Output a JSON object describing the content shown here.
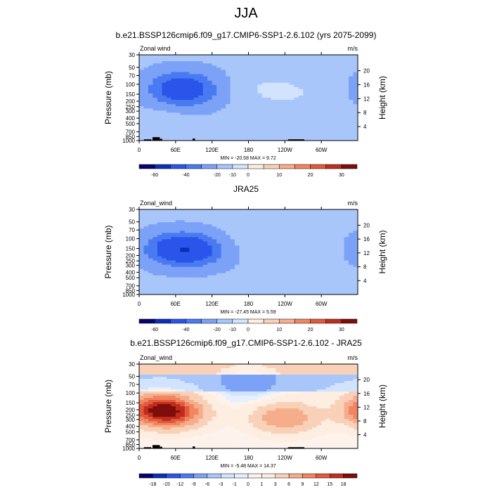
{
  "figure": {
    "title": "JJA"
  },
  "colors": {
    "full_palette": [
      "#08046a",
      "#0b2fb5",
      "#2a55ea",
      "#4a7af2",
      "#7ca2f7",
      "#a9c6fb",
      "#d1e3fd",
      "#fdeee1",
      "#f9d1b9",
      "#f6ad8c",
      "#ef8561",
      "#e25a3b",
      "#c02d1e",
      "#7e0d0b"
    ],
    "diff_palette": [
      "#08046a",
      "#0b2fb5",
      "#2a55ea",
      "#4a7af2",
      "#7ca2f7",
      "#a9c6fb",
      "#d1e3fd",
      "#e6effd",
      "#fdf3ec",
      "#fdeee1",
      "#f9d1b9",
      "#f6ad8c",
      "#ef8561",
      "#e25a3b",
      "#c02d1e",
      "#7e0d0b"
    ],
    "topography": "#000000"
  },
  "chart_data": [
    {
      "type": "heatmap",
      "title": "b.e21.BSSP126cmip6.f09_g17.CMIP6-SSP1-2.6.102 (yrs 2075-2099)",
      "left_label": "Zonal wind",
      "units": "m/s",
      "ylabel": "Pressure (mb)",
      "right_ylabel": "Height (km)",
      "pressure_ticks": [
        "30",
        "50",
        "70",
        "100",
        "150",
        "200",
        "250",
        "300",
        "400",
        "500",
        "700",
        "850",
        "1000"
      ],
      "height_ticks": [
        "20",
        "16",
        "12",
        "8",
        "4"
      ],
      "lon_ticks": [
        "0",
        "60E",
        "120E",
        "180",
        "120W",
        "60W"
      ],
      "stats": "MIN = -20.58  MAX =  9.72",
      "colorbar_labels": [
        "-60",
        "-40",
        "-20",
        "-10",
        "0",
        "10",
        "20",
        "30"
      ],
      "features": [
        {
          "lon": 70,
          "p": 110,
          "value": -20.6
        },
        {
          "lon": 75,
          "p": 150,
          "value": -12
        },
        {
          "lon": 210,
          "p": 120,
          "value": 9.7
        },
        {
          "lon": 260,
          "p": 150,
          "value": 8
        },
        {
          "lon": 40,
          "p": 500,
          "value": 6
        }
      ],
      "topography": [
        {
          "lon_start": 8,
          "lon_end": 20,
          "p_top": 950
        },
        {
          "lon_start": 22,
          "lon_end": 34,
          "p_top": 870
        },
        {
          "lon_start": 34,
          "lon_end": 38,
          "p_top": 930
        },
        {
          "lon_start": 88,
          "lon_end": 92,
          "p_top": 920
        },
        {
          "lon_start": 245,
          "lon_end": 272,
          "p_top": 950
        }
      ]
    },
    {
      "type": "heatmap",
      "title": "JRA25",
      "left_label": "Zonal_wind",
      "units": "m/s",
      "ylabel": "Pressure (mb)",
      "right_ylabel": "Height (km)",
      "pressure_ticks": [
        "30",
        "50",
        "70",
        "100",
        "150",
        "200",
        "250",
        "300",
        "400",
        "500",
        "700",
        "850",
        "1000"
      ],
      "height_ticks": [
        "20",
        "16",
        "12",
        "8",
        "4"
      ],
      "lon_ticks": [
        "0",
        "60E",
        "120E",
        "180",
        "120W",
        "60W"
      ],
      "stats": "MIN = -27.45  MAX =  5.59",
      "colorbar_labels": [
        "-60",
        "-40",
        "-20",
        "-10",
        "0",
        "10",
        "20",
        "30"
      ],
      "features": [
        {
          "lon": 65,
          "p": 150,
          "value": -27.4
        },
        {
          "lon": 90,
          "p": 170,
          "value": -15
        },
        {
          "lon": 200,
          "p": 100,
          "value": 5.6
        },
        {
          "lon": 255,
          "p": 170,
          "value": 5
        }
      ],
      "topography": []
    },
    {
      "type": "heatmap",
      "title": "b.e21.BSSP126cmip6.f09_g17.CMIP6-SSP1-2.6.102 - JRA25",
      "left_label": "Zonal_wind",
      "units": "m/s",
      "ylabel": "Pressure (mb)",
      "right_ylabel": "Height (km)",
      "pressure_ticks": [
        "30",
        "50",
        "70",
        "100",
        "150",
        "200",
        "250",
        "300",
        "400",
        "500",
        "700",
        "850",
        "1000"
      ],
      "height_ticks": [
        "20",
        "16",
        "12",
        "8",
        "4"
      ],
      "lon_ticks": [
        "0",
        "60E",
        "120E",
        "180",
        "120W",
        "60W"
      ],
      "stats": "MIN = -5.48  MAX = 14.37",
      "colorbar_labels": [
        "-18",
        "-15",
        "-12",
        "-9",
        "-6",
        "-3",
        "-1",
        "0",
        "1",
        "3",
        "6",
        "9",
        "12",
        "15",
        "18"
      ],
      "features": [
        {
          "lon": 30,
          "p": 200,
          "value": 14.4
        },
        {
          "lon": 60,
          "p": 230,
          "value": 9
        },
        {
          "lon": 240,
          "p": 280,
          "value": 9
        },
        {
          "lon": 180,
          "p": 60,
          "value": -5.5
        }
      ],
      "topography": [
        {
          "lon_start": 8,
          "lon_end": 20,
          "p_top": 950
        },
        {
          "lon_start": 22,
          "lon_end": 34,
          "p_top": 870
        },
        {
          "lon_start": 34,
          "lon_end": 38,
          "p_top": 930
        },
        {
          "lon_start": 88,
          "lon_end": 92,
          "p_top": 920
        },
        {
          "lon_start": 245,
          "lon_end": 272,
          "p_top": 950
        }
      ]
    }
  ]
}
